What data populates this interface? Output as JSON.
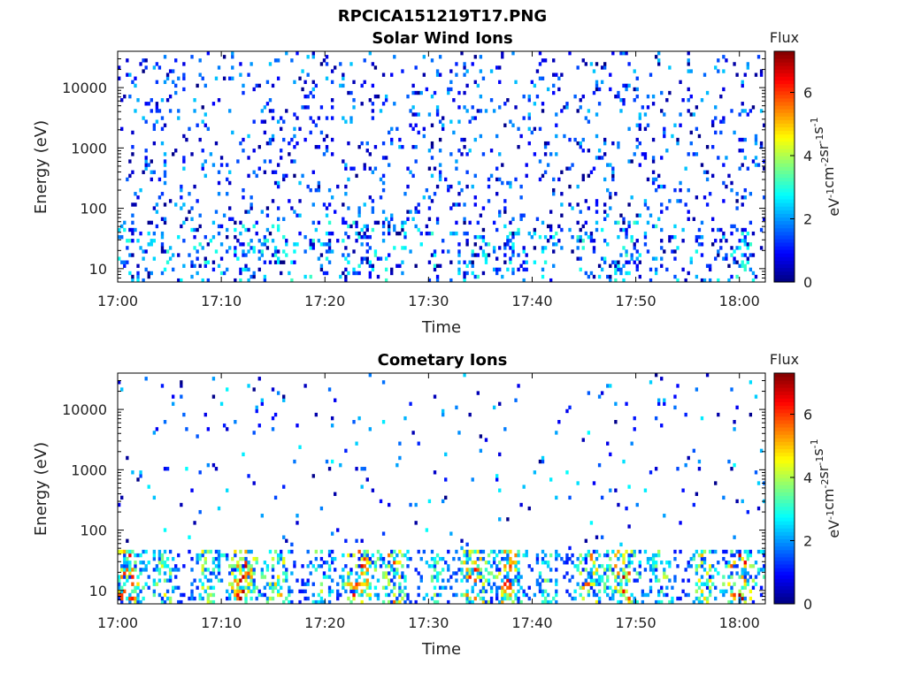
{
  "figure_title": "RPCICA151219T17.PNG",
  "chart_data": [
    {
      "type": "heatmap",
      "title": "Solar Wind Ions",
      "xlabel": "Time",
      "ylabel": "Energy (eV)",
      "x_ticks": [
        "17:00",
        "17:10",
        "17:20",
        "17:30",
        "17:40",
        "17:50",
        "18:00"
      ],
      "xlim_minutes": [
        0,
        62.5
      ],
      "y_scale": "log",
      "y_ticks": [
        "10",
        "100",
        "1000",
        "10000"
      ],
      "ylim": [
        6,
        40000
      ],
      "colorbar": {
        "label": "Flux",
        "unit_label": "eV-1cm-2sr-1s-1",
        "ticks": [
          "0",
          "2",
          "4",
          "6"
        ],
        "range": [
          0,
          7.3
        ],
        "colormap": "jet"
      },
      "description_of_pattern": "sparse low flux (0-3) scattered over 10-30000 eV, denser low-energy streaks below 100 eV"
    },
    {
      "type": "heatmap",
      "title": "Cometary Ions",
      "xlabel": "Time",
      "ylabel": "Energy (eV)",
      "x_ticks": [
        "17:00",
        "17:10",
        "17:20",
        "17:30",
        "17:40",
        "17:50",
        "18:00"
      ],
      "xlim_minutes": [
        0,
        62.5
      ],
      "y_scale": "log",
      "y_ticks": [
        "10",
        "100",
        "1000",
        "10000"
      ],
      "ylim": [
        6,
        40000
      ],
      "colorbar": {
        "label": "Flux",
        "unit_label": "eV-1cm-2sr-1s-1",
        "ticks": [
          "0",
          "2",
          "4",
          "6"
        ],
        "range": [
          0,
          7.3
        ],
        "colormap": "jet"
      },
      "description_of_pattern": "bursts of high flux (4-7) at 10-40 eV, occasional sparse points up to 10000 eV"
    }
  ]
}
